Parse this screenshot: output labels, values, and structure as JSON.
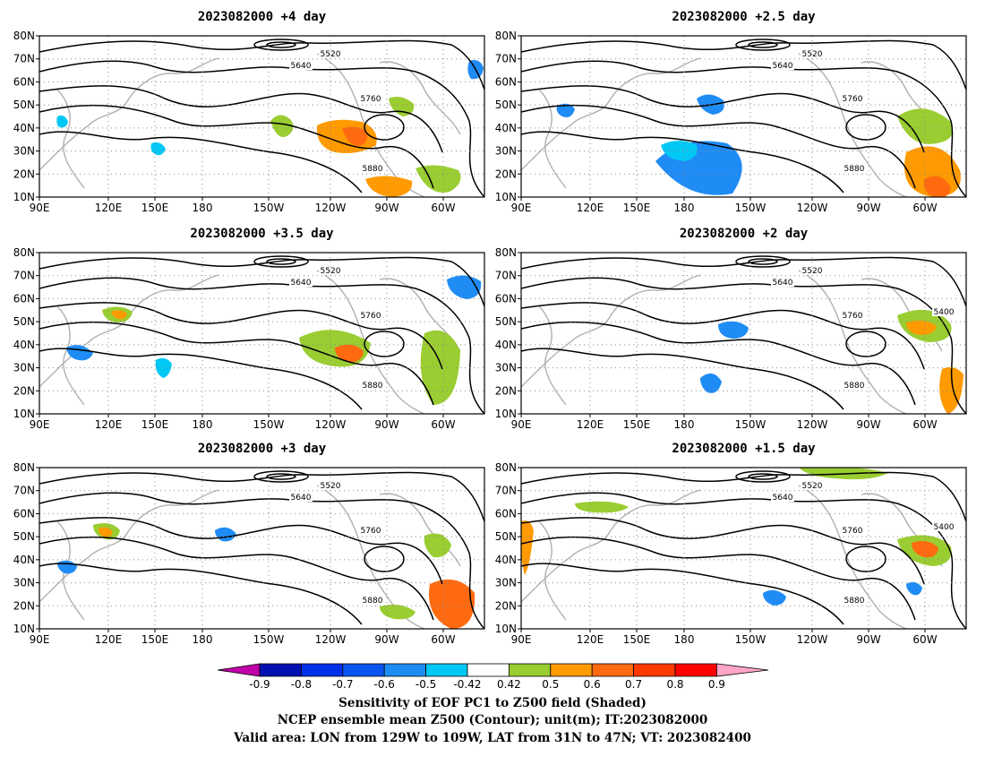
{
  "panels": [
    {
      "title": "2023082000  +4 day"
    },
    {
      "title": "2023082000  +2.5 day"
    },
    {
      "title": "2023082000  +3.5 day"
    },
    {
      "title": "2023082000  +2 day"
    },
    {
      "title": "2023082000  +3 day"
    },
    {
      "title": "2023082000  +1.5 day"
    }
  ],
  "axes": {
    "lon_labels": [
      "90E",
      "120E",
      "150E",
      "180",
      "150W",
      "120W",
      "90W",
      "60W"
    ],
    "lat_labels": [
      "10N",
      "20N",
      "30N",
      "40N",
      "50N",
      "60N",
      "70N",
      "80N"
    ]
  },
  "contour_labels": [
    "5400",
    "5520",
    "5640",
    "5760",
    "5880"
  ],
  "colorbar": {
    "ticks": [
      "-0.9",
      "-0.8",
      "-0.7",
      "-0.6",
      "-0.5",
      "-0.42",
      "0.42",
      "0.5",
      "0.6",
      "0.7",
      "0.8",
      "0.9"
    ],
    "colors": [
      "#c000a8",
      "#0010b0",
      "#0030e8",
      "#0a55f0",
      "#1f8cf5",
      "#00c8f5",
      "#ffffff",
      "#9acd32",
      "#ff9a00",
      "#ff6a10",
      "#ff3a00",
      "#ff0000",
      "#ffa5c8"
    ]
  },
  "caption": {
    "line1": "Sensitivity of EOF PC1 to Z500 field (Shaded)",
    "line2": "NCEP ensemble mean Z500 (Contour); unit(m); IT:2023082000",
    "line3": "Valid area: LON from 129W to 109W, LAT from 31N to 47N; VT: 2023082400"
  }
}
